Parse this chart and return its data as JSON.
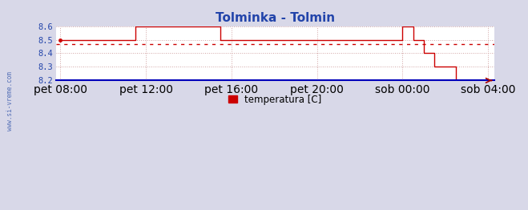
{
  "title": "Tolminka - Tolmin",
  "title_color": "#2244aa",
  "bg_color": "#d8d8e8",
  "plot_bg_color": "#ffffff",
  "outer_bg_color": "#d8d8e8",
  "line_color": "#cc0000",
  "avg_line_color": "#cc0000",
  "avg_value": 8.468,
  "ylim": [
    8.2,
    8.6
  ],
  "yticks": [
    8.2,
    8.3,
    8.4,
    8.5,
    8.6
  ],
  "tick_color": "#2244aa",
  "grid_color": "#cc9999",
  "x_total_hours": 20,
  "xtick_labels": [
    "pet 08:00",
    "pet 12:00",
    "pet 16:00",
    "pet 20:00",
    "sob 00:00",
    "sob 04:00"
  ],
  "xtick_positions": [
    0,
    4,
    8,
    12,
    16,
    20
  ],
  "legend_label": "temperatura [C]",
  "left_label": "www.si-vreme.com",
  "bottom_axis_color": "#0000bb",
  "arrow_color": "#aa0000",
  "data_x": [
    0,
    3.5,
    3.5,
    7.5,
    7.5,
    16.0,
    16.0,
    16.5,
    16.5,
    17.0,
    17.0,
    17.5,
    17.5,
    18.5,
    18.5,
    19.0,
    19.0,
    20.0
  ],
  "data_y": [
    8.5,
    8.5,
    8.6,
    8.6,
    8.5,
    8.5,
    8.6,
    8.6,
    8.5,
    8.5,
    8.4,
    8.4,
    8.3,
    8.3,
    8.2,
    8.2,
    8.2,
    8.2
  ]
}
